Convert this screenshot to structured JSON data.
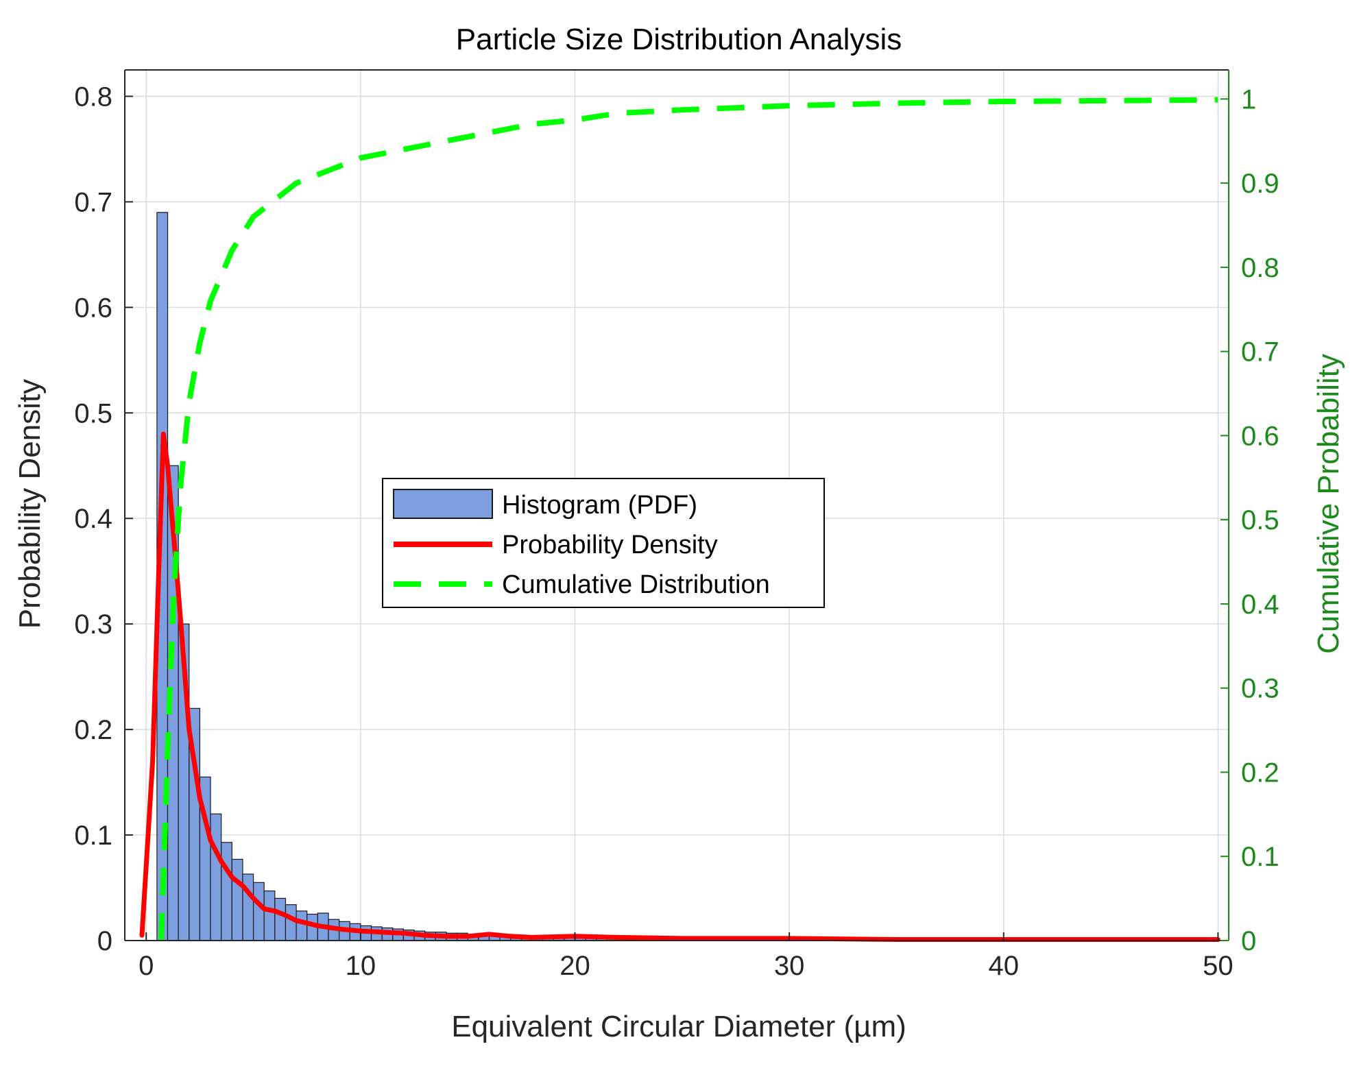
{
  "chart_data": {
    "type": "bar",
    "title": "Particle Size Distribution Analysis",
    "xlabel": "Equivalent Circular Diameter (µm)",
    "ylabel": "Probability Density",
    "ylabel_right": "Cumulative Probability",
    "xlim": [
      -1,
      50.5
    ],
    "ylim": [
      0,
      0.825
    ],
    "ylim_right": [
      0,
      1.0345
    ],
    "x_ticks": [
      0,
      10,
      20,
      30,
      40,
      50
    ],
    "x_tick_labels": [
      "0",
      "10",
      "20",
      "30",
      "40",
      "50"
    ],
    "y_ticks": [
      0,
      0.1,
      0.2,
      0.3,
      0.4,
      0.5,
      0.6,
      0.7,
      0.8
    ],
    "y_tick_labels": [
      "0",
      "0.1",
      "0.2",
      "0.3",
      "0.4",
      "0.5",
      "0.6",
      "0.7",
      "0.8"
    ],
    "y_right_ticks": [
      0,
      0.1,
      0.2,
      0.3,
      0.4,
      0.5,
      0.6,
      0.7,
      0.8,
      0.9,
      1
    ],
    "y_right_tick_labels": [
      "0",
      "0.1",
      "0.2",
      "0.3",
      "0.4",
      "0.5",
      "0.6",
      "0.7",
      "0.8",
      "0.9",
      "1"
    ],
    "grid": true,
    "legend_position": "center",
    "legend": [
      {
        "label": "Histogram (PDF)",
        "kind": "patch"
      },
      {
        "label": "Probability Density",
        "kind": "solid"
      },
      {
        "label": "Cumulative Distribution",
        "kind": "dashed"
      }
    ],
    "colors": {
      "bar_fill": "#7d9fe0",
      "bar_edge": "#1a1a1a",
      "pdf_line": "#ff0000",
      "cdf_line": "#00ff00",
      "right_axis": "#1a8a1a",
      "grid": "#dcdcdc"
    },
    "histogram": {
      "bin_start": 0.5,
      "bin_width": 0.5,
      "values": [
        0.69,
        0.45,
        0.3,
        0.22,
        0.155,
        0.12,
        0.093,
        0.077,
        0.063,
        0.055,
        0.047,
        0.04,
        0.034,
        0.028,
        0.025,
        0.026,
        0.02,
        0.018,
        0.016,
        0.014,
        0.013,
        0.012,
        0.011,
        0.01,
        0.009,
        0.008,
        0.008,
        0.007,
        0.007,
        0.006,
        0.006,
        0.005,
        0.005,
        0.005,
        0.004,
        0.004,
        0.004,
        0.003,
        0.003,
        0.003,
        0.003,
        0.003,
        0.002,
        0.002,
        0.002,
        0.002,
        0.002,
        0.002,
        0.002,
        0.002,
        0.002,
        0.001,
        0.001,
        0.001,
        0.001,
        0.001,
        0.001,
        0.001,
        0.001,
        0.001
      ]
    },
    "series": [
      {
        "name": "Probability Density",
        "x": [
          -0.2,
          0.3,
          0.6,
          0.8,
          1.0,
          1.5,
          2.0,
          2.5,
          3.0,
          3.5,
          4.0,
          4.5,
          5.0,
          5.5,
          6.0,
          6.5,
          7.0,
          8.0,
          9.0,
          10.0,
          11.0,
          12.0,
          13.0,
          14.0,
          15.0,
          16.0,
          17.0,
          18.0,
          20.0,
          22.0,
          25.0,
          30.0,
          35.0,
          40.0,
          45.0,
          50.0
        ],
        "y": [
          0.005,
          0.17,
          0.36,
          0.48,
          0.45,
          0.33,
          0.2,
          0.135,
          0.095,
          0.075,
          0.06,
          0.052,
          0.04,
          0.03,
          0.028,
          0.024,
          0.019,
          0.014,
          0.011,
          0.009,
          0.008,
          0.007,
          0.005,
          0.004,
          0.004,
          0.006,
          0.004,
          0.003,
          0.004,
          0.003,
          0.002,
          0.002,
          0.001,
          0.001,
          0.001,
          0.001
        ]
      },
      {
        "name": "Cumulative Distribution",
        "x": [
          0.7,
          0.9,
          1.1,
          1.3,
          1.6,
          2.0,
          2.5,
          3.0,
          3.5,
          4.0,
          4.5,
          5.0,
          5.5,
          6.0,
          7.0,
          8.0,
          9.0,
          10.0,
          12.0,
          14.0,
          16.0,
          18.0,
          20.0,
          22.0,
          25.0,
          30.0,
          35.0,
          40.0,
          45.0,
          50.0
        ],
        "y": [
          0.0,
          0.15,
          0.3,
          0.42,
          0.54,
          0.64,
          0.71,
          0.76,
          0.79,
          0.82,
          0.84,
          0.86,
          0.87,
          0.88,
          0.9,
          0.91,
          0.92,
          0.93,
          0.94,
          0.95,
          0.96,
          0.97,
          0.975,
          0.983,
          0.987,
          0.992,
          0.995,
          0.997,
          0.998,
          0.999
        ]
      }
    ]
  }
}
